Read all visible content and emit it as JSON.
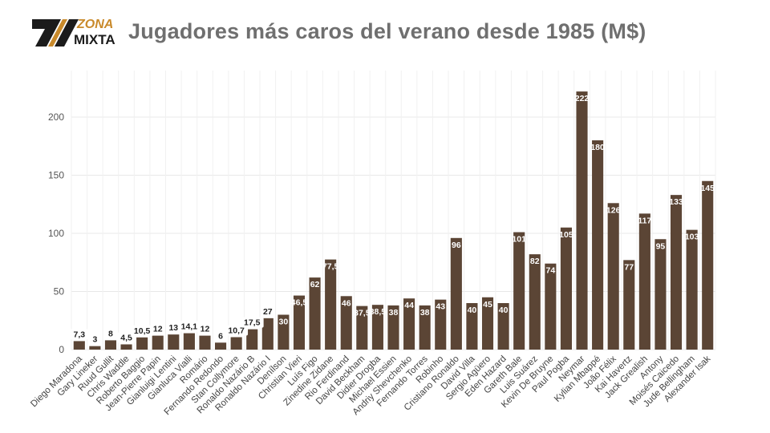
{
  "header": {
    "logo_top": "ZONA",
    "logo_bottom": "MIXTA",
    "title": "Jugadores más caros del verano desde 1985 (M$)"
  },
  "colors": {
    "bar": "#5b4535",
    "accent": "#c98a2b",
    "title": "#6f6f6f"
  },
  "chart_data": {
    "type": "bar",
    "title": "Jugadores más caros del verano desde 1985 (M$)",
    "xlabel": "",
    "ylabel": "",
    "ylim": [
      0,
      240
    ],
    "yticks": [
      0,
      50,
      100,
      150,
      200
    ],
    "grid": true,
    "categories": [
      "Diego Maradona",
      "Gary Lineker",
      "Ruud Gullit",
      "Chris Waddle",
      "Roberto Baggio",
      "Jean-Pierre Papin",
      "Gianluigi Lentini",
      "Gianluca Vialli",
      "Romário",
      "Fernando Redondo",
      "Stan Collymore",
      "Ronaldo Nazário B",
      "Ronaldo Nazário I",
      "Denílson",
      "Christian Vieri",
      "Luís Figo",
      "Zinedine Zidane",
      "Rio Ferdinand",
      "David Beckham",
      "Didier Drogba",
      "Michael Essien",
      "Andriy Shevchenko",
      "Fernando Torres",
      "Robinho",
      "Cristiano Ronaldo",
      "David Villa",
      "Sergio Agüero",
      "Eden Hazard",
      "Gareth Bale",
      "Luis Suárez",
      "Kevin De Bruyne",
      "Paul Pogba",
      "Neymar",
      "Kylian Mbappé",
      "João Félix",
      "Kai Havertz",
      "Jack Grealish",
      "Antony",
      "Moisés Caicedo",
      "Jude Bellingham",
      "Alexander Isak"
    ],
    "values": [
      7.3,
      3,
      8,
      4.5,
      10.5,
      12,
      13,
      14.1,
      12,
      6,
      10.7,
      17.5,
      27,
      30,
      46.5,
      62,
      77.5,
      46,
      37.5,
      38.5,
      38,
      44,
      38,
      43,
      96,
      40,
      45,
      40,
      101,
      82,
      74,
      105,
      222,
      180,
      126,
      77,
      117,
      95,
      133,
      103,
      145
    ],
    "data_labels": [
      "7,3",
      "3",
      "8",
      "4,5",
      "10,5",
      "12",
      "13",
      "14,1",
      "12",
      "6",
      "10,7",
      "17,5",
      "27",
      "30",
      "46,5",
      "62",
      "77,5",
      "46",
      "37,5",
      "38,5",
      "38",
      "44",
      "38",
      "43",
      "96",
      "40",
      "45",
      "40",
      "101",
      "82",
      "74",
      "105",
      "222",
      "180",
      "126",
      "77",
      "117",
      "95",
      "133",
      "103",
      "145"
    ]
  }
}
